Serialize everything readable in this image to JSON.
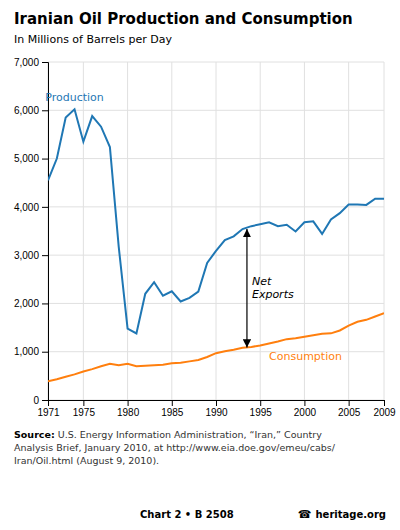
{
  "chart_data": {
    "type": "line",
    "title": "Iranian Oil Production and Consumption",
    "subtitle": "In Millions of Barrels per Day",
    "x": [
      1971,
      1972,
      1973,
      1974,
      1975,
      1976,
      1977,
      1978,
      1979,
      1980,
      1981,
      1982,
      1983,
      1984,
      1985,
      1986,
      1987,
      1988,
      1989,
      1990,
      1991,
      1992,
      1993,
      1994,
      1995,
      1996,
      1997,
      1998,
      1999,
      2000,
      2001,
      2002,
      2003,
      2004,
      2005,
      2006,
      2007,
      2008,
      2009
    ],
    "series": [
      {
        "name": "Production",
        "values": [
          4550,
          5000,
          5850,
          6020,
          5350,
          5880,
          5660,
          5240,
          3170,
          1480,
          1380,
          2200,
          2440,
          2160,
          2250,
          2040,
          2115,
          2245,
          2840,
          3088,
          3310,
          3390,
          3540,
          3600,
          3640,
          3680,
          3600,
          3630,
          3490,
          3680,
          3700,
          3440,
          3740,
          3870,
          4050,
          4050,
          4040,
          4170,
          4170
        ]
      },
      {
        "name": "Consumption",
        "values": [
          390,
          430,
          480,
          530,
          590,
          640,
          700,
          750,
          720,
          750,
          700,
          710,
          720,
          730,
          760,
          770,
          800,
          830,
          890,
          970,
          1010,
          1040,
          1080,
          1100,
          1130,
          1170,
          1210,
          1260,
          1280,
          1310,
          1340,
          1370,
          1380,
          1440,
          1540,
          1620,
          1660,
          1730,
          1800
        ]
      }
    ],
    "xlim": [
      1971,
      2009
    ],
    "xticks": [
      1971,
      1975,
      1980,
      1985,
      1990,
      1995,
      2000,
      2005,
      2009
    ],
    "ylim": [
      0,
      7000
    ],
    "yticks": [
      0,
      {
        "value": 1000,
        "label": "1,000"
      },
      {
        "value": 2000,
        "label": "2,000"
      },
      {
        "value": 3000,
        "label": "3,000"
      },
      {
        "value": 4000,
        "label": "4,000"
      },
      {
        "value": 5000,
        "label": "5,000"
      },
      {
        "value": 6000,
        "label": "6,000"
      },
      {
        "value": 7000,
        "label": "7,000"
      }
    ],
    "grid": true,
    "annotations": [
      {
        "text": "Net\nExports",
        "x": 1993.5,
        "y_top": 3540,
        "y_bottom": 1085
      }
    ],
    "source_label": "Source:",
    "source": " U.S. Energy Information Administration, “Iran,” Country\nAnalysis Brief, January 2010, at http://www.eia.doe.gov/emeu/cabs/\nIran/Oil.html (August 9, 2010).",
    "chart_id": "Chart 2 • B 2508",
    "footer_icon": "☎",
    "footer_site": "heritage.org"
  }
}
